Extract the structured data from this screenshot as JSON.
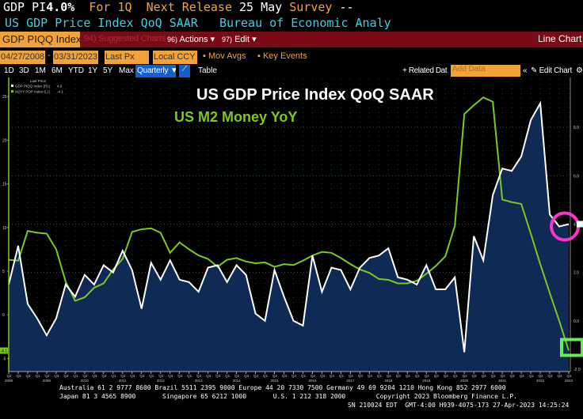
{
  "header": {
    "ticker": "GDP PI",
    "value": "4.0%",
    "period": "For 1Q",
    "next_label": "Next Release",
    "next_date": "25 May",
    "survey_label": "Survey",
    "survey_value": "--",
    "description": "US GDP Price Index QoQ SAAR",
    "source": "Bureau of Economic Analy"
  },
  "toolbar": {
    "security": "GDP PIQQ Index",
    "suggested": "Suggested Charts",
    "suggested_num": "94)",
    "actions_num": "96)",
    "actions": "Actions",
    "edit_num": "97)",
    "edit": "Edit",
    "chart_type": "Line Chart"
  },
  "controls": {
    "start_date": "04/27/2008",
    "end_date": "03/31/2023",
    "field": "Last Px",
    "currency": "Local CCY",
    "mov_avgs": "Mov Avgs",
    "key_events": "Key Events"
  },
  "periods": [
    "1D",
    "3D",
    "1M",
    "6M",
    "YTD",
    "1Y",
    "5Y",
    "Max"
  ],
  "frequency": "Quarterly",
  "table": "Table",
  "related": "+ Related Dat",
  "add_data_placeholder": "Add Data",
  "edit_chart": "Edit Chart",
  "colors": {
    "gdp": "#ffffff",
    "m2": "#7cc81e",
    "fill": "#0f2a55",
    "toolbar": "#7a0b16",
    "amber": "#f2a23a",
    "highlight_circle": "#ff33cc",
    "highlight_box": "#66ee55"
  },
  "chart_data": {
    "type": "line",
    "title": "US GDP Price Index QoQ SAAR",
    "subtitle": "US M2 Money YoY",
    "legend": {
      "header": "Last Price",
      "placement": "top-left",
      "entries": [
        {
          "name": "GDP PIQQ Index (R1)",
          "last": "4.0"
        },
        {
          "name": "M2YY POP Index (L1)",
          "last": "-4.1"
        }
      ]
    },
    "categories": [
      "Q2 2008",
      "Q3 2008",
      "Q4 2008",
      "Q1 2009",
      "Q2 2009",
      "Q3 2009",
      "Q4 2009",
      "Q1 2010",
      "Q2 2010",
      "Q3 2010",
      "Q4 2010",
      "Q1 2011",
      "Q2 2011",
      "Q3 2011",
      "Q4 2011",
      "Q1 2012",
      "Q2 2012",
      "Q3 2012",
      "Q4 2012",
      "Q1 2013",
      "Q2 2013",
      "Q3 2013",
      "Q4 2013",
      "Q1 2014",
      "Q2 2014",
      "Q3 2014",
      "Q4 2014",
      "Q1 2015",
      "Q2 2015",
      "Q3 2015",
      "Q4 2015",
      "Q1 2016",
      "Q2 2016",
      "Q3 2016",
      "Q4 2016",
      "Q1 2017",
      "Q2 2017",
      "Q3 2017",
      "Q4 2017",
      "Q1 2018",
      "Q2 2018",
      "Q3 2018",
      "Q4 2018",
      "Q1 2019",
      "Q2 2019",
      "Q3 2019",
      "Q4 2019",
      "Q1 2020",
      "Q2 2020",
      "Q3 2020",
      "Q4 2020",
      "Q1 2021",
      "Q2 2021",
      "Q3 2021",
      "Q4 2021",
      "Q1 2022",
      "Q2 2022",
      "Q3 2022",
      "Q4 2022",
      "Q1 2023"
    ],
    "series": [
      {
        "name": "GDP PIQQ Index (R1)",
        "axis": "right",
        "style": "area",
        "values": [
          1.5,
          3.1,
          0.7,
          0.1,
          -0.6,
          0.1,
          1.5,
          1.0,
          1.9,
          1.5,
          2.3,
          2.0,
          2.9,
          2.1,
          0.5,
          2.4,
          1.7,
          2.5,
          1.7,
          1.6,
          1.2,
          2.2,
          2.3,
          1.6,
          2.3,
          1.9,
          0.3,
          0.0,
          2.1,
          1.0,
          0.0,
          -0.2,
          2.7,
          1.2,
          2.2,
          2.1,
          1.3,
          2.2,
          2.6,
          2.7,
          3.0,
          1.8,
          1.7,
          1.5,
          2.3,
          1.3,
          1.3,
          1.8,
          -1.3,
          3.5,
          2.5,
          5.2,
          6.3,
          6.2,
          6.8,
          8.3,
          9.0,
          4.4,
          3.9,
          4.0
        ]
      },
      {
        "name": "M2YY POP Index (L1)",
        "axis": "left",
        "style": "line",
        "values": [
          6.3,
          6.2,
          9.6,
          9.4,
          9.3,
          7.5,
          3.8,
          1.6,
          2.0,
          3.1,
          3.6,
          5.2,
          6.4,
          9.5,
          9.8,
          9.9,
          9.4,
          7.1,
          8.3,
          7.5,
          6.8,
          6.4,
          5.5,
          6.3,
          6.5,
          6.1,
          5.9,
          6.0,
          5.5,
          5.8,
          5.7,
          6.2,
          6.8,
          7.2,
          7.1,
          6.5,
          5.8,
          5.2,
          4.8,
          4.1,
          4.0,
          3.6,
          3.6,
          3.9,
          4.7,
          5.6,
          6.7,
          10.2,
          23.0,
          24.0,
          24.9,
          24.4,
          13.2,
          12.9,
          12.7,
          9.3,
          5.8,
          2.5,
          -0.7,
          -4.1
        ]
      }
    ],
    "left_axis": {
      "ticks": [
        "25",
        "20",
        "15",
        "10",
        "5",
        "0",
        "-5"
      ],
      "range": [
        -6.5,
        27
      ]
    },
    "right_axis": {
      "ticks": [
        "8.0",
        "6.0",
        "4.0",
        "2.0",
        "0.0",
        "-2.0"
      ],
      "range": [
        -2.1,
        10.0
      ]
    },
    "years": [
      "2008",
      "2009",
      "2010",
      "2011",
      "2012",
      "2013",
      "2014",
      "2015",
      "2016",
      "2017",
      "2018",
      "2019",
      "2020",
      "2021",
      "2022",
      "2023"
    ],
    "grid": true
  },
  "footer": {
    "line1": "Australia 61 2 9777 8600 Brazil 5511 2395 9000 Europe 44 20 7330 7500 Germany 49 69 9204 1210 Hong Kong 852 2977 6000",
    "line2": "Japan 81 3 4565 8900       Singapore 65 6212 1000       U.S. 1 212 318 2000        Copyright 2023 Bloomberg Finance L.P.",
    "line3": "SN 210024 EDT  GMT-4:00 H939-4075-173 27-Apr-2023 14:25:24"
  }
}
